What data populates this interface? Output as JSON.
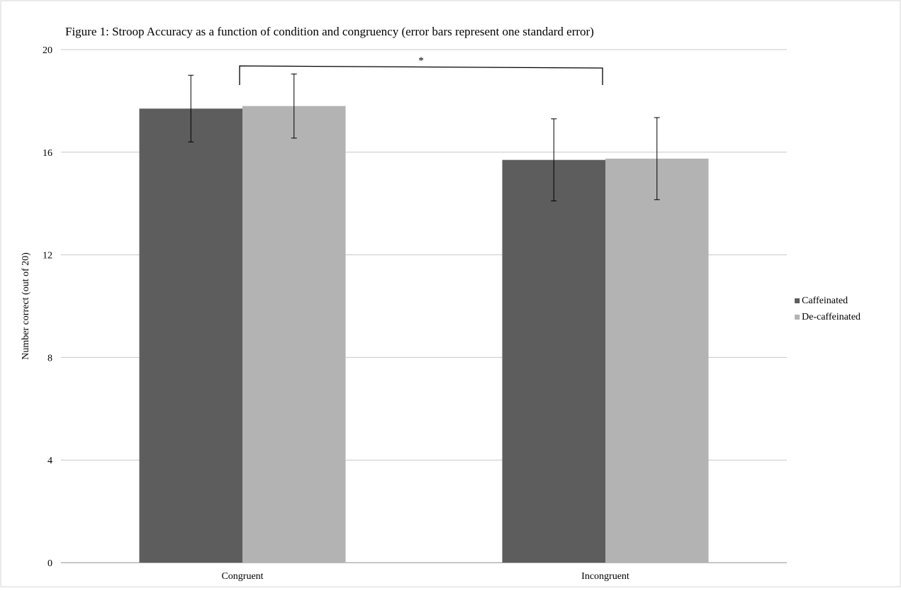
{
  "chart_data": {
    "type": "bar",
    "title": "Figure 1: Stroop Accuracy as a function of condition and congruency (error bars represent one standard error)",
    "ylabel": "Number correct (out of 20)",
    "xlabel": "",
    "categories": [
      "Congruent",
      "Incongruent"
    ],
    "ylim": [
      0,
      20
    ],
    "yticks": [
      0,
      4,
      8,
      12,
      16,
      20
    ],
    "grid": true,
    "legend_position": "right",
    "series": [
      {
        "name": "Caffeinated",
        "color": "#5d5d5d",
        "values": [
          17.7,
          15.7
        ],
        "error": [
          1.3,
          1.6
        ]
      },
      {
        "name": "De-caffeinated",
        "color": "#b3b3b3",
        "values": [
          17.8,
          15.75
        ],
        "error": [
          1.25,
          1.6
        ]
      }
    ],
    "annotations": [
      {
        "type": "significance-bracket",
        "text": "*",
        "from": "Congruent",
        "to": "Incongruent"
      }
    ]
  }
}
